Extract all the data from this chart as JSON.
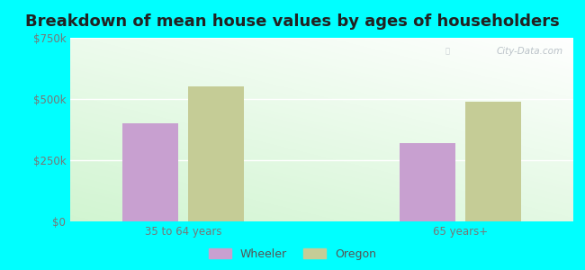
{
  "title": "Breakdown of mean house values by ages of householders",
  "categories": [
    "35 to 64 years",
    "65 years+"
  ],
  "wheeler_values": [
    400000,
    320000
  ],
  "oregon_values": [
    550000,
    490000
  ],
  "wheeler_color": "#c8a0d0",
  "oregon_color": "#c5cc96",
  "ylim": [
    0,
    750000
  ],
  "yticks": [
    0,
    250000,
    500000,
    750000
  ],
  "ytick_labels": [
    "$0",
    "$250k",
    "$500k",
    "$750k"
  ],
  "background_color": "#00ffff",
  "title_fontsize": 13,
  "title_color": "#222222",
  "legend_labels": [
    "Wheeler",
    "Oregon"
  ],
  "watermark": "City-Data.com",
  "group_positions": [
    1.0,
    2.6
  ],
  "bar_width": 0.32,
  "xlim": [
    0.35,
    3.25
  ]
}
